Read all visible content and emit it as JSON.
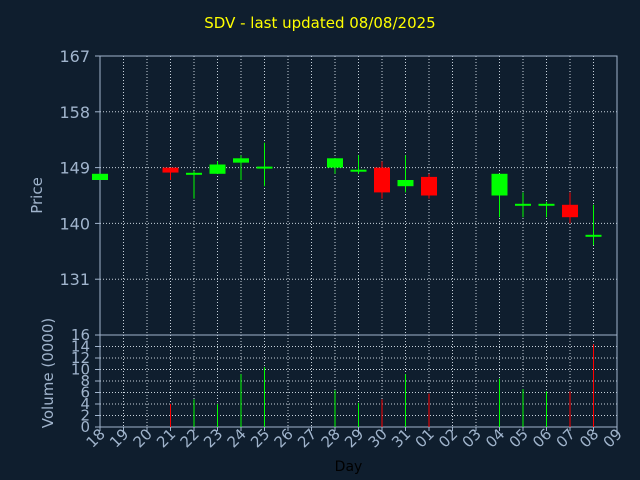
{
  "title": "SDV - last updated 08/08/2025",
  "colors": {
    "background": "#0f1e2e",
    "frame": "#a0b4cc",
    "grid": "#c8d2dc",
    "title": "#ffff00",
    "up": "#00ff00",
    "down": "#ff0000"
  },
  "chart_data": [
    {
      "type": "candlestick",
      "ylabel": "Price",
      "ylim": [
        122,
        167
      ],
      "yticks": [
        167,
        158,
        149,
        140,
        131
      ],
      "grid": true,
      "x_ticks": [
        "18",
        "19",
        "20",
        "21",
        "22",
        "23",
        "24",
        "25",
        "26",
        "27",
        "28",
        "29",
        "30",
        "31",
        "01",
        "02",
        "03",
        "04",
        "05",
        "06",
        "07",
        "08",
        "09"
      ],
      "candles": [
        {
          "day": "18",
          "open": 147.0,
          "high": 148.0,
          "low": 147.0,
          "close": 148.0
        },
        {
          "day": "21",
          "open": 149.0,
          "high": 149.0,
          "low": 147.0,
          "close": 148.2
        },
        {
          "day": "22",
          "open": 148.0,
          "high": 148.5,
          "low": 144.0,
          "close": 148.0
        },
        {
          "day": "23",
          "open": 148.0,
          "high": 150.0,
          "low": 148.0,
          "close": 149.5
        },
        {
          "day": "24",
          "open": 149.8,
          "high": 151.0,
          "low": 147.0,
          "close": 150.5
        },
        {
          "day": "25",
          "open": 149.0,
          "high": 153.0,
          "low": 146.0,
          "close": 149.0
        },
        {
          "day": "28",
          "open": 149.0,
          "high": 150.5,
          "low": 148.0,
          "close": 150.5
        },
        {
          "day": "29",
          "open": 148.5,
          "high": 151.0,
          "low": 148.0,
          "close": 148.5
        },
        {
          "day": "30",
          "open": 149.0,
          "high": 150.0,
          "low": 144.0,
          "close": 145.0
        },
        {
          "day": "31",
          "open": 146.0,
          "high": 151.0,
          "low": 145.0,
          "close": 147.0
        },
        {
          "day": "01",
          "open": 147.5,
          "high": 148.0,
          "low": 144.0,
          "close": 144.5
        },
        {
          "day": "04",
          "open": 144.5,
          "high": 148.0,
          "low": 141.0,
          "close": 148.0
        },
        {
          "day": "05",
          "open": 143.0,
          "high": 145.0,
          "low": 141.0,
          "close": 143.0
        },
        {
          "day": "06",
          "open": 143.0,
          "high": 143.5,
          "low": 141.0,
          "close": 143.0
        },
        {
          "day": "07",
          "open": 143.0,
          "high": 145.0,
          "low": 140.0,
          "close": 141.0
        },
        {
          "day": "08",
          "open": 138.0,
          "high": 143.0,
          "low": 136.5,
          "close": 138.0
        }
      ]
    },
    {
      "type": "bar",
      "ylabel": "Volume (0000)",
      "xlabel": "Day",
      "ylim": [
        0,
        16
      ],
      "yticks": [
        16,
        14,
        12,
        10,
        8,
        6,
        4,
        2,
        0
      ],
      "grid": true,
      "bars": [
        {
          "day": "21",
          "value": 4.0,
          "color": "down"
        },
        {
          "day": "22",
          "value": 4.8,
          "color": "up"
        },
        {
          "day": "23",
          "value": 4.0,
          "color": "up"
        },
        {
          "day": "24",
          "value": 9.2,
          "color": "up"
        },
        {
          "day": "25",
          "value": 10.4,
          "color": "up"
        },
        {
          "day": "28",
          "value": 6.4,
          "color": "up"
        },
        {
          "day": "29",
          "value": 4.2,
          "color": "up"
        },
        {
          "day": "30",
          "value": 4.8,
          "color": "down"
        },
        {
          "day": "31",
          "value": 9.2,
          "color": "up"
        },
        {
          "day": "01",
          "value": 5.8,
          "color": "down"
        },
        {
          "day": "04",
          "value": 8.4,
          "color": "up"
        },
        {
          "day": "05",
          "value": 6.6,
          "color": "up"
        },
        {
          "day": "06",
          "value": 6.2,
          "color": "up"
        },
        {
          "day": "07",
          "value": 6.2,
          "color": "down"
        },
        {
          "day": "08",
          "value": 14.4,
          "color": "down"
        }
      ]
    }
  ]
}
